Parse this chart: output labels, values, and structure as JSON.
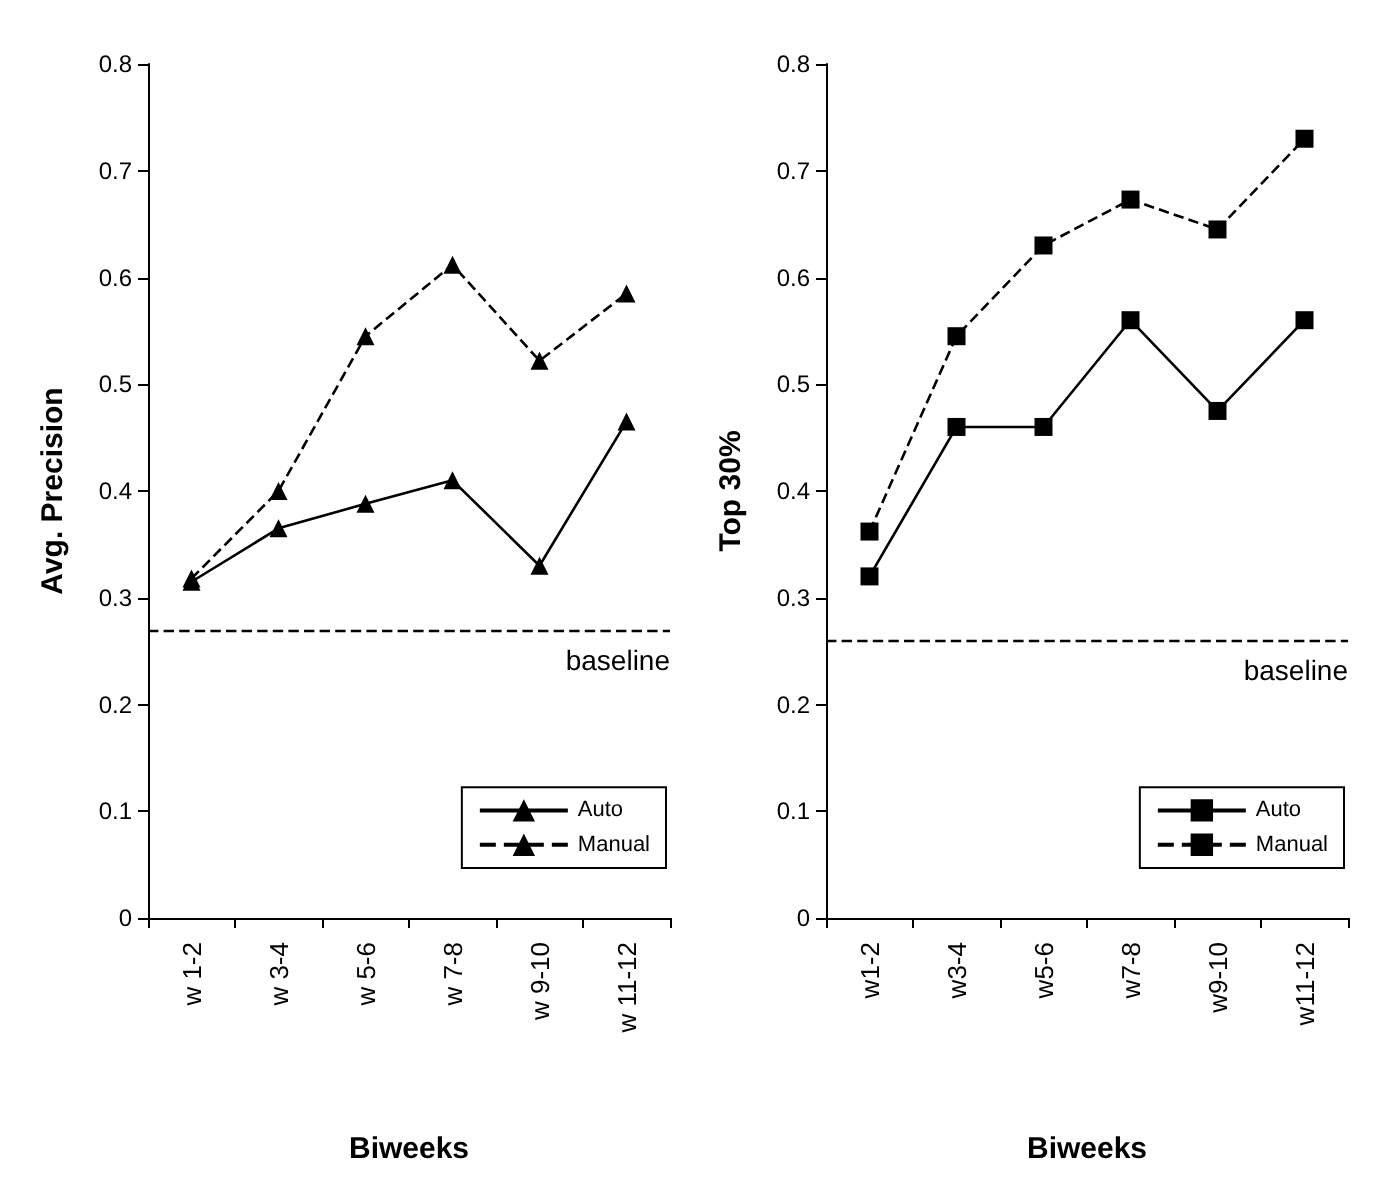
{
  "chart_data": [
    {
      "type": "line",
      "xlabel": "Biweeks",
      "ylabel": "Avg. Precision",
      "categories": [
        "w 1-2",
        "w 3-4",
        "w 5-6",
        "w 7-8",
        "w 9-10",
        "w 11-12"
      ],
      "series": [
        {
          "name": "Auto",
          "color": "#000000",
          "line_style": "solid",
          "values": [
            0.315,
            0.365,
            0.388,
            0.41,
            0.33,
            0.465
          ]
        },
        {
          "name": "Manual",
          "color": "#000000",
          "line_style": "dashed",
          "values": [
            0.318,
            0.4,
            0.545,
            0.612,
            0.522,
            0.585
          ]
        }
      ],
      "marker": "triangle",
      "ylim": [
        0,
        0.8
      ],
      "yticks": [
        0,
        0.1,
        0.2,
        0.3,
        0.4,
        0.5,
        0.6,
        0.7,
        0.8
      ],
      "grid": false,
      "legend": "bottom right",
      "ref_lines": [
        {
          "axis": "y",
          "value": 0.268,
          "label": "baseline",
          "color": "#000000",
          "line_style": "dashed"
        }
      ]
    },
    {
      "type": "line",
      "xlabel": "Biweeks",
      "ylabel": "Top 30%",
      "categories": [
        "w1-2",
        "w3-4",
        "w5-6",
        "w7-8",
        "w9-10",
        "w11-12"
      ],
      "series": [
        {
          "name": "Auto",
          "color": "#000000",
          "line_style": "solid",
          "values": [
            0.32,
            0.46,
            0.46,
            0.56,
            0.475,
            0.56
          ]
        },
        {
          "name": "Manual",
          "color": "#000000",
          "line_style": "dashed",
          "values": [
            0.362,
            0.545,
            0.63,
            0.673,
            0.645,
            0.73
          ]
        }
      ],
      "marker": "square",
      "ylim": [
        0,
        0.8
      ],
      "yticks": [
        0,
        0.1,
        0.2,
        0.3,
        0.4,
        0.5,
        0.6,
        0.7,
        0.8
      ],
      "grid": false,
      "legend": "bottom right",
      "ref_lines": [
        {
          "axis": "y",
          "value": 0.257,
          "label": "baseline",
          "color": "#000000",
          "line_style": "dashed"
        }
      ]
    }
  ]
}
